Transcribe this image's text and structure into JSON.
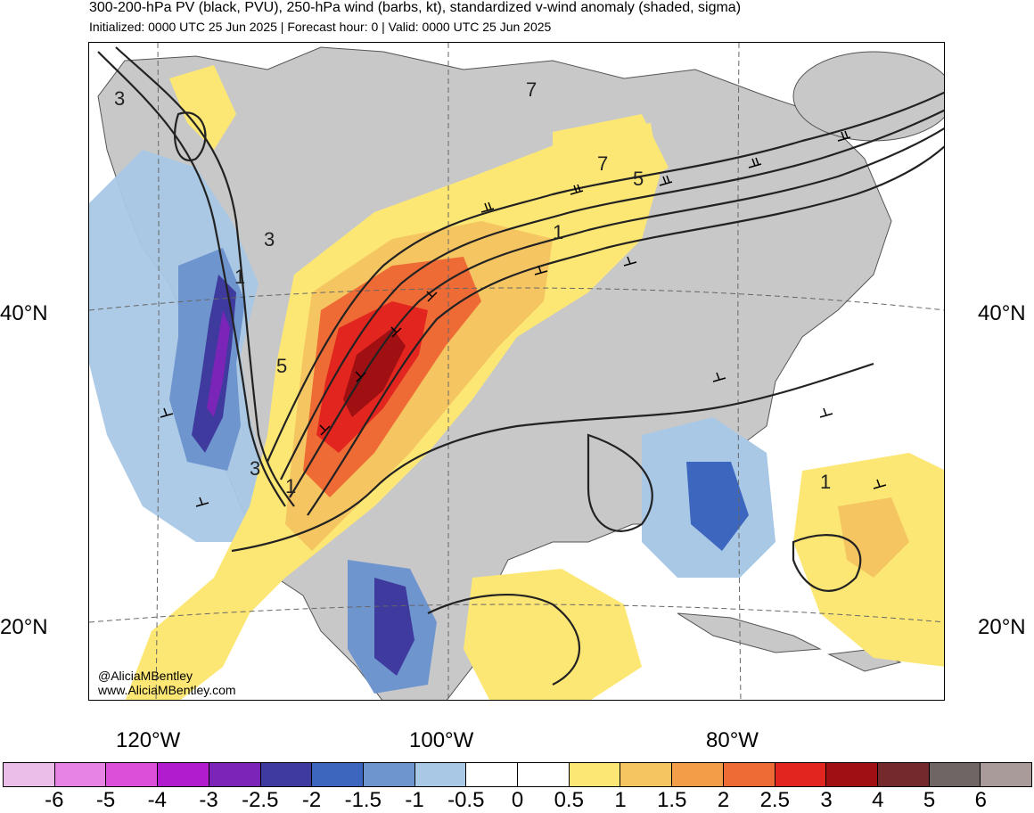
{
  "header": {
    "title": "300-200-hPa PV (black, PVU), 250-hPa wind (barbs, kt), standardized v-wind anomaly (shaded, sigma)",
    "subtitle": "Initialized: 0000 UTC 25 Jun 2025 | Forecast hour: 0 | Valid: 0000 UTC 25 Jun 2025"
  },
  "map": {
    "lat_labels": [
      "40°N",
      "20°N"
    ],
    "lon_labels": [
      "120°W",
      "100°W",
      "80°W"
    ],
    "contour_labels": [
      "3",
      "3",
      "1",
      "5",
      "3",
      "1",
      "7",
      "7",
      "5",
      "1",
      "1"
    ],
    "credit_handle": "@AliciaMBentley",
    "credit_url": "www.AliciaMBentley.com"
  },
  "colorbar": {
    "colors": [
      "#ebbde9",
      "#e783e3",
      "#db4fd9",
      "#b21ccf",
      "#7a24b8",
      "#3e3a9e",
      "#3d66be",
      "#6f95cf",
      "#a9c8e6",
      "#ffffff",
      "#ffffff",
      "#fde774",
      "#f5c562",
      "#f29d47",
      "#ef6b35",
      "#e2251f",
      "#a00f12",
      "#74292d",
      "#6e6564",
      "#a89b9a"
    ],
    "labels": [
      "-6",
      "-5",
      "-4",
      "-3",
      "-2.5",
      "-2",
      "-1.5",
      "-1",
      "-0.5",
      "0",
      "0.5",
      "1",
      "1.5",
      "2",
      "2.5",
      "3",
      "4",
      "5",
      "6"
    ]
  },
  "legend_colors": {
    "land": "#c8c8c8",
    "ocean": "#ffffff",
    "contour": "#222222"
  }
}
